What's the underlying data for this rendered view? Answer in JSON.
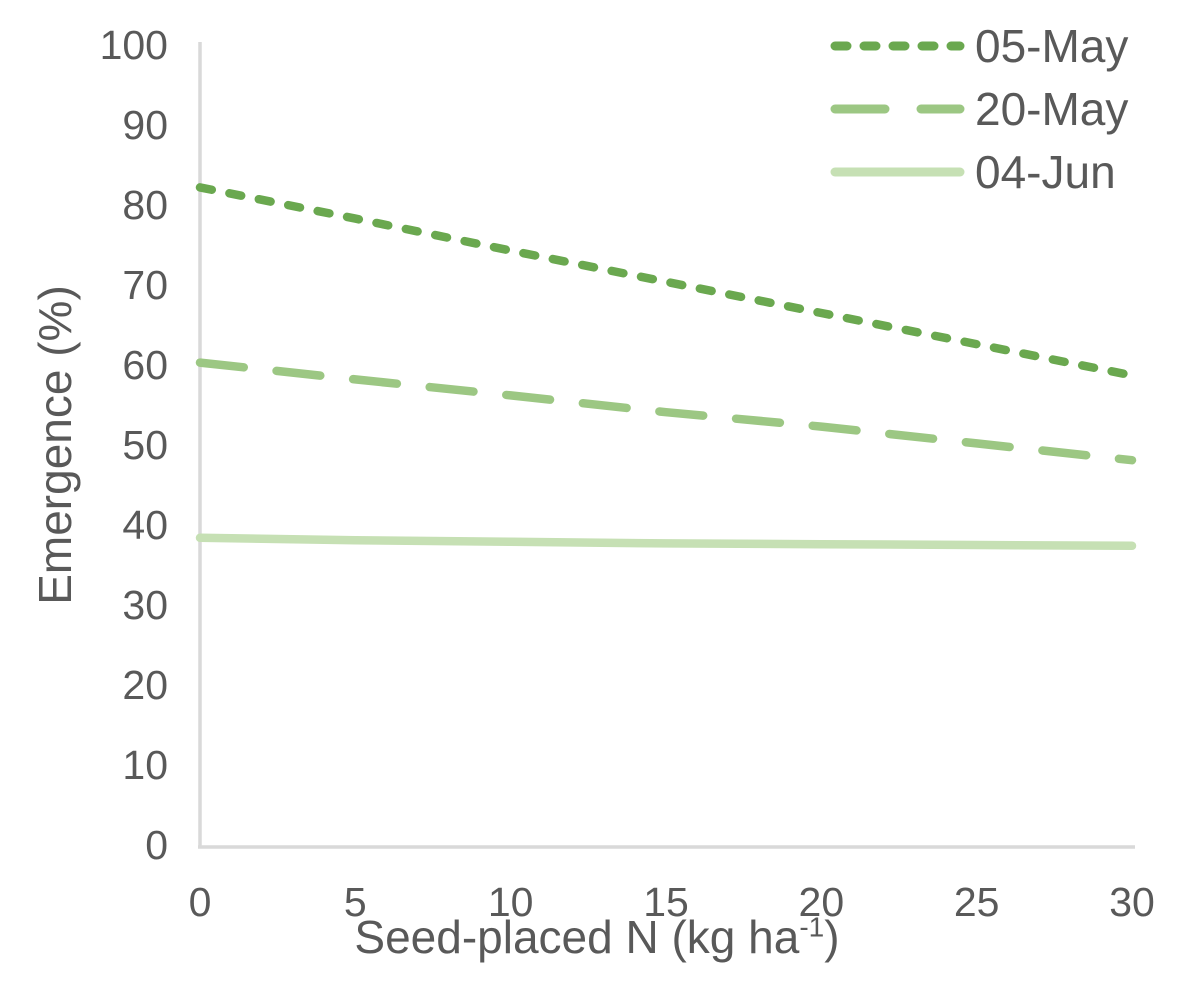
{
  "chart_data": {
    "type": "line",
    "title": "",
    "ylabel": "Emergence (%)",
    "xlabel_main": "Seed-placed N (kg ha",
    "xlabel_sup": "-1",
    "xlabel_close": ")",
    "xlim": [
      0,
      30
    ],
    "ylim": [
      0,
      100
    ],
    "xticks": [
      0,
      5,
      10,
      15,
      20,
      25,
      30
    ],
    "yticks": [
      0,
      10,
      20,
      30,
      40,
      50,
      60,
      70,
      80,
      90,
      100
    ],
    "grid": false,
    "legend_position": "top-right",
    "x": [
      0,
      5,
      10,
      15,
      20,
      25,
      30
    ],
    "series": [
      {
        "name": "05-May",
        "color": "#6aa84f",
        "style": "short-dash",
        "values": [
          82.2,
          78.3,
          74.3,
          70.4,
          66.5,
          62.6,
          58.7
        ]
      },
      {
        "name": "20-May",
        "color": "#9cc783",
        "style": "long-dash",
        "values": [
          60.3,
          58.2,
          56.2,
          54.1,
          52.3,
          50.2,
          48.1
        ]
      },
      {
        "name": "04-Jun",
        "color": "#c6e0b4",
        "style": "solid",
        "values": [
          38.4,
          38.1,
          37.9,
          37.7,
          37.6,
          37.5,
          37.4
        ]
      }
    ]
  },
  "colors": {
    "text": "#595959",
    "axis_line": "#d9d9d9",
    "background": "#ffffff"
  }
}
